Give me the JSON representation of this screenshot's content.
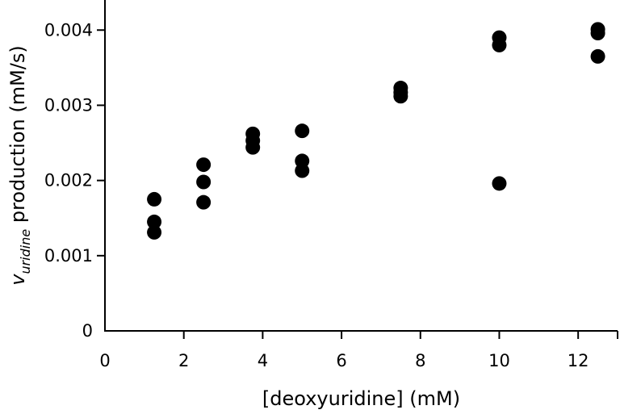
{
  "chart_data": {
    "type": "scatter",
    "title": "",
    "xlabel": "[deoxyuridine] (mM)",
    "ylabel": {
      "main": "v",
      "subscript": "uridine",
      "rest": " production (mM/s)"
    },
    "xlim": [
      0,
      13
    ],
    "ylim": [
      0,
      0.0044
    ],
    "x_ticks": [
      0,
      2,
      4,
      6,
      8,
      10,
      12
    ],
    "x_tick_labels": [
      "0",
      "2",
      "4",
      "6",
      "8",
      "10",
      "12"
    ],
    "y_ticks": [
      0,
      0.001,
      0.002,
      0.003,
      0.004
    ],
    "y_tick_labels": [
      "0",
      "0.001",
      "0.002",
      "0.003",
      "0.004"
    ],
    "grid": false,
    "marker_color": "#000000",
    "points": [
      {
        "x": 1.25,
        "y": 0.00175
      },
      {
        "x": 1.25,
        "y": 0.00145
      },
      {
        "x": 1.25,
        "y": 0.00131
      },
      {
        "x": 2.5,
        "y": 0.00221
      },
      {
        "x": 2.5,
        "y": 0.00198
      },
      {
        "x": 2.5,
        "y": 0.00171
      },
      {
        "x": 3.75,
        "y": 0.00262
      },
      {
        "x": 3.75,
        "y": 0.00253
      },
      {
        "x": 3.75,
        "y": 0.00244
      },
      {
        "x": 5,
        "y": 0.00266
      },
      {
        "x": 5,
        "y": 0.00226
      },
      {
        "x": 5,
        "y": 0.00213
      },
      {
        "x": 7.5,
        "y": 0.00323
      },
      {
        "x": 7.5,
        "y": 0.00317
      },
      {
        "x": 7.5,
        "y": 0.00312
      },
      {
        "x": 10,
        "y": 0.0039
      },
      {
        "x": 10,
        "y": 0.0038
      },
      {
        "x": 10,
        "y": 0.00196
      },
      {
        "x": 12.5,
        "y": 0.00401
      },
      {
        "x": 12.5,
        "y": 0.00396
      },
      {
        "x": 12.5,
        "y": 0.00365
      }
    ]
  }
}
